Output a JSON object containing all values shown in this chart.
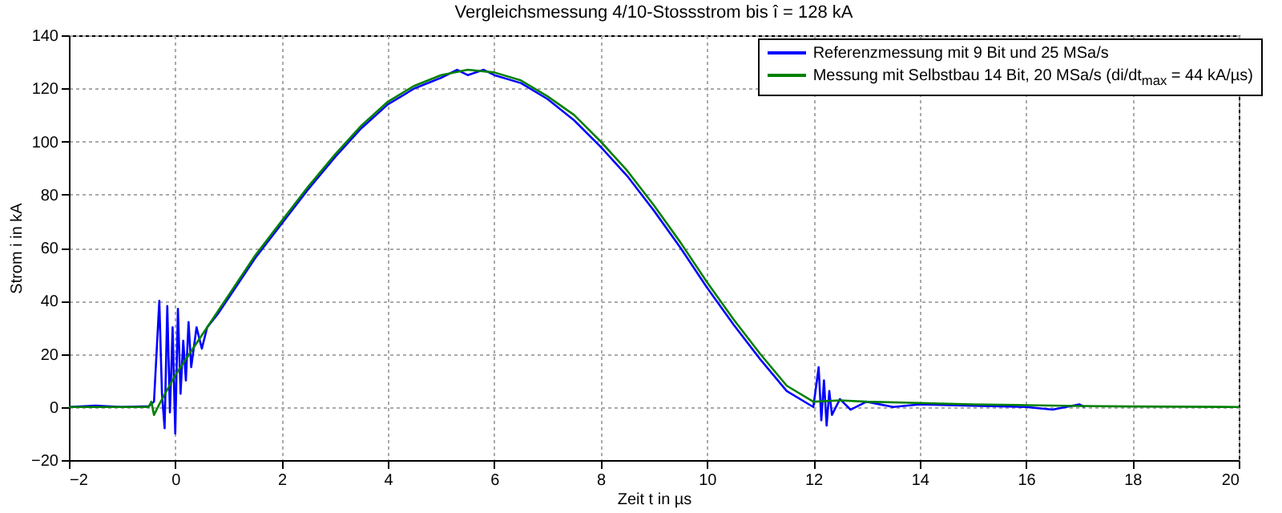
{
  "chart_data": {
    "type": "line",
    "title": "Vergleichsmessung 4/10-Stossstrom bis î = 128 kA",
    "xlabel": "Zeit t in µs",
    "ylabel": "Strom i in kA",
    "xlim": [
      -2,
      20
    ],
    "xticks": [
      -2,
      0,
      2,
      4,
      6,
      8,
      10,
      12,
      14,
      16,
      18,
      20
    ],
    "ylim": [
      -20,
      140
    ],
    "yticks": [
      -20,
      0,
      20,
      40,
      60,
      80,
      100,
      120,
      140
    ],
    "grid": true,
    "legend": "top right",
    "line_style": "solid",
    "series": [
      {
        "name": "Referenzmessung mit 9 Bit und 25 MSa/s",
        "color": "#0000ff",
        "x": [
          -2,
          -1.5,
          -1,
          -0.5,
          -0.4,
          -0.3,
          -0.25,
          -0.2,
          -0.15,
          -0.1,
          -0.05,
          0,
          0.05,
          0.1,
          0.15,
          0.2,
          0.25,
          0.3,
          0.4,
          0.5,
          0.6,
          0.8,
          1,
          1.5,
          2,
          2.5,
          3,
          3.5,
          4,
          4.5,
          5,
          5.3,
          5.5,
          5.8,
          6,
          6.5,
          7,
          7.5,
          8,
          8.5,
          9,
          9.5,
          10,
          10.5,
          11,
          11.5,
          12,
          12.1,
          12.15,
          12.2,
          12.25,
          12.3,
          12.35,
          12.5,
          12.7,
          13,
          13.5,
          14,
          15,
          16,
          16.5,
          17,
          17.1
        ],
        "values": [
          0,
          0.5,
          0,
          0.3,
          2,
          40,
          5,
          -8,
          38,
          -2,
          30,
          -10,
          37,
          5,
          25,
          10,
          32,
          15,
          30,
          22,
          30,
          35,
          41,
          56,
          69,
          82,
          94,
          105,
          114,
          120,
          124,
          127,
          125,
          127,
          125,
          122,
          116,
          108,
          98,
          87,
          74,
          60,
          45,
          31,
          18,
          6,
          0,
          15,
          -5,
          10,
          -7,
          6,
          -3,
          3,
          -1,
          2,
          0,
          1,
          0.5,
          0,
          -1,
          1,
          0
        ]
      },
      {
        "name": "Messung mit Selbstbau 14 Bit, 20 MSa/s (di/dt$_{max}$ = 44 kA/µs)",
        "color": "#008000",
        "x": [
          -2,
          -0.5,
          -0.45,
          -0.4,
          -0.3,
          0,
          0.5,
          1,
          1.5,
          2,
          2.5,
          3,
          3.5,
          4,
          4.5,
          5,
          5.5,
          6,
          6.5,
          7,
          7.5,
          8,
          8.5,
          9,
          9.5,
          10,
          10.5,
          11,
          11.5,
          12,
          12.5,
          13,
          14,
          15,
          16,
          17,
          18,
          20
        ],
        "values": [
          0,
          0,
          2,
          -3,
          1,
          12,
          27,
          42,
          57,
          70,
          83,
          95,
          106,
          115,
          121,
          125,
          127,
          126,
          123,
          117,
          110,
          100,
          89,
          76,
          62,
          47,
          33,
          20,
          8,
          2,
          2.5,
          2,
          1.5,
          1,
          0.7,
          0.4,
          0.2,
          0
        ]
      }
    ]
  }
}
